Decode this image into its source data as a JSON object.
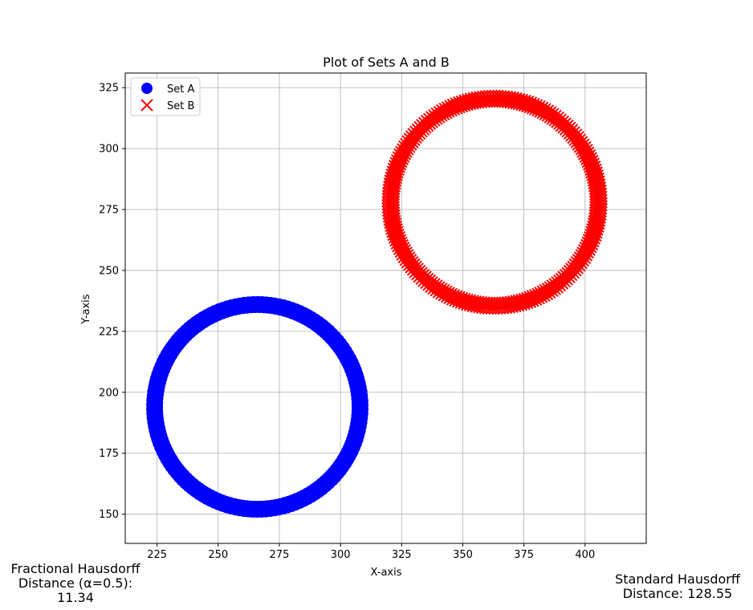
{
  "chart_data": {
    "type": "scatter",
    "title": "Plot of Sets A and B",
    "xlabel": "X-axis",
    "ylabel": "Y-axis",
    "xlim": [
      212,
      425
    ],
    "ylim": [
      138,
      331
    ],
    "xticks": [
      225,
      250,
      275,
      300,
      325,
      350,
      375,
      400
    ],
    "yticks": [
      150,
      175,
      200,
      225,
      250,
      275,
      300,
      325
    ],
    "grid": true,
    "legend_position": "top-left",
    "series": [
      {
        "name": "Set A",
        "marker": "circle",
        "color": "#0000ff",
        "shape": "ring",
        "center": [
          266,
          194
        ],
        "inner_radius": 40,
        "outer_radius": 44
      },
      {
        "name": "Set B",
        "marker": "x",
        "color": "#ff0000",
        "shape": "ring",
        "center": [
          363,
          278
        ],
        "inner_radius": 40,
        "outer_radius": 45
      }
    ]
  },
  "annotations": {
    "fractional": [
      "Fractional Hausdorff",
      "Distance (α=0.5):",
      "11.34"
    ],
    "standard": [
      "Standard Hausdorff",
      "Distance: 128.55"
    ]
  }
}
